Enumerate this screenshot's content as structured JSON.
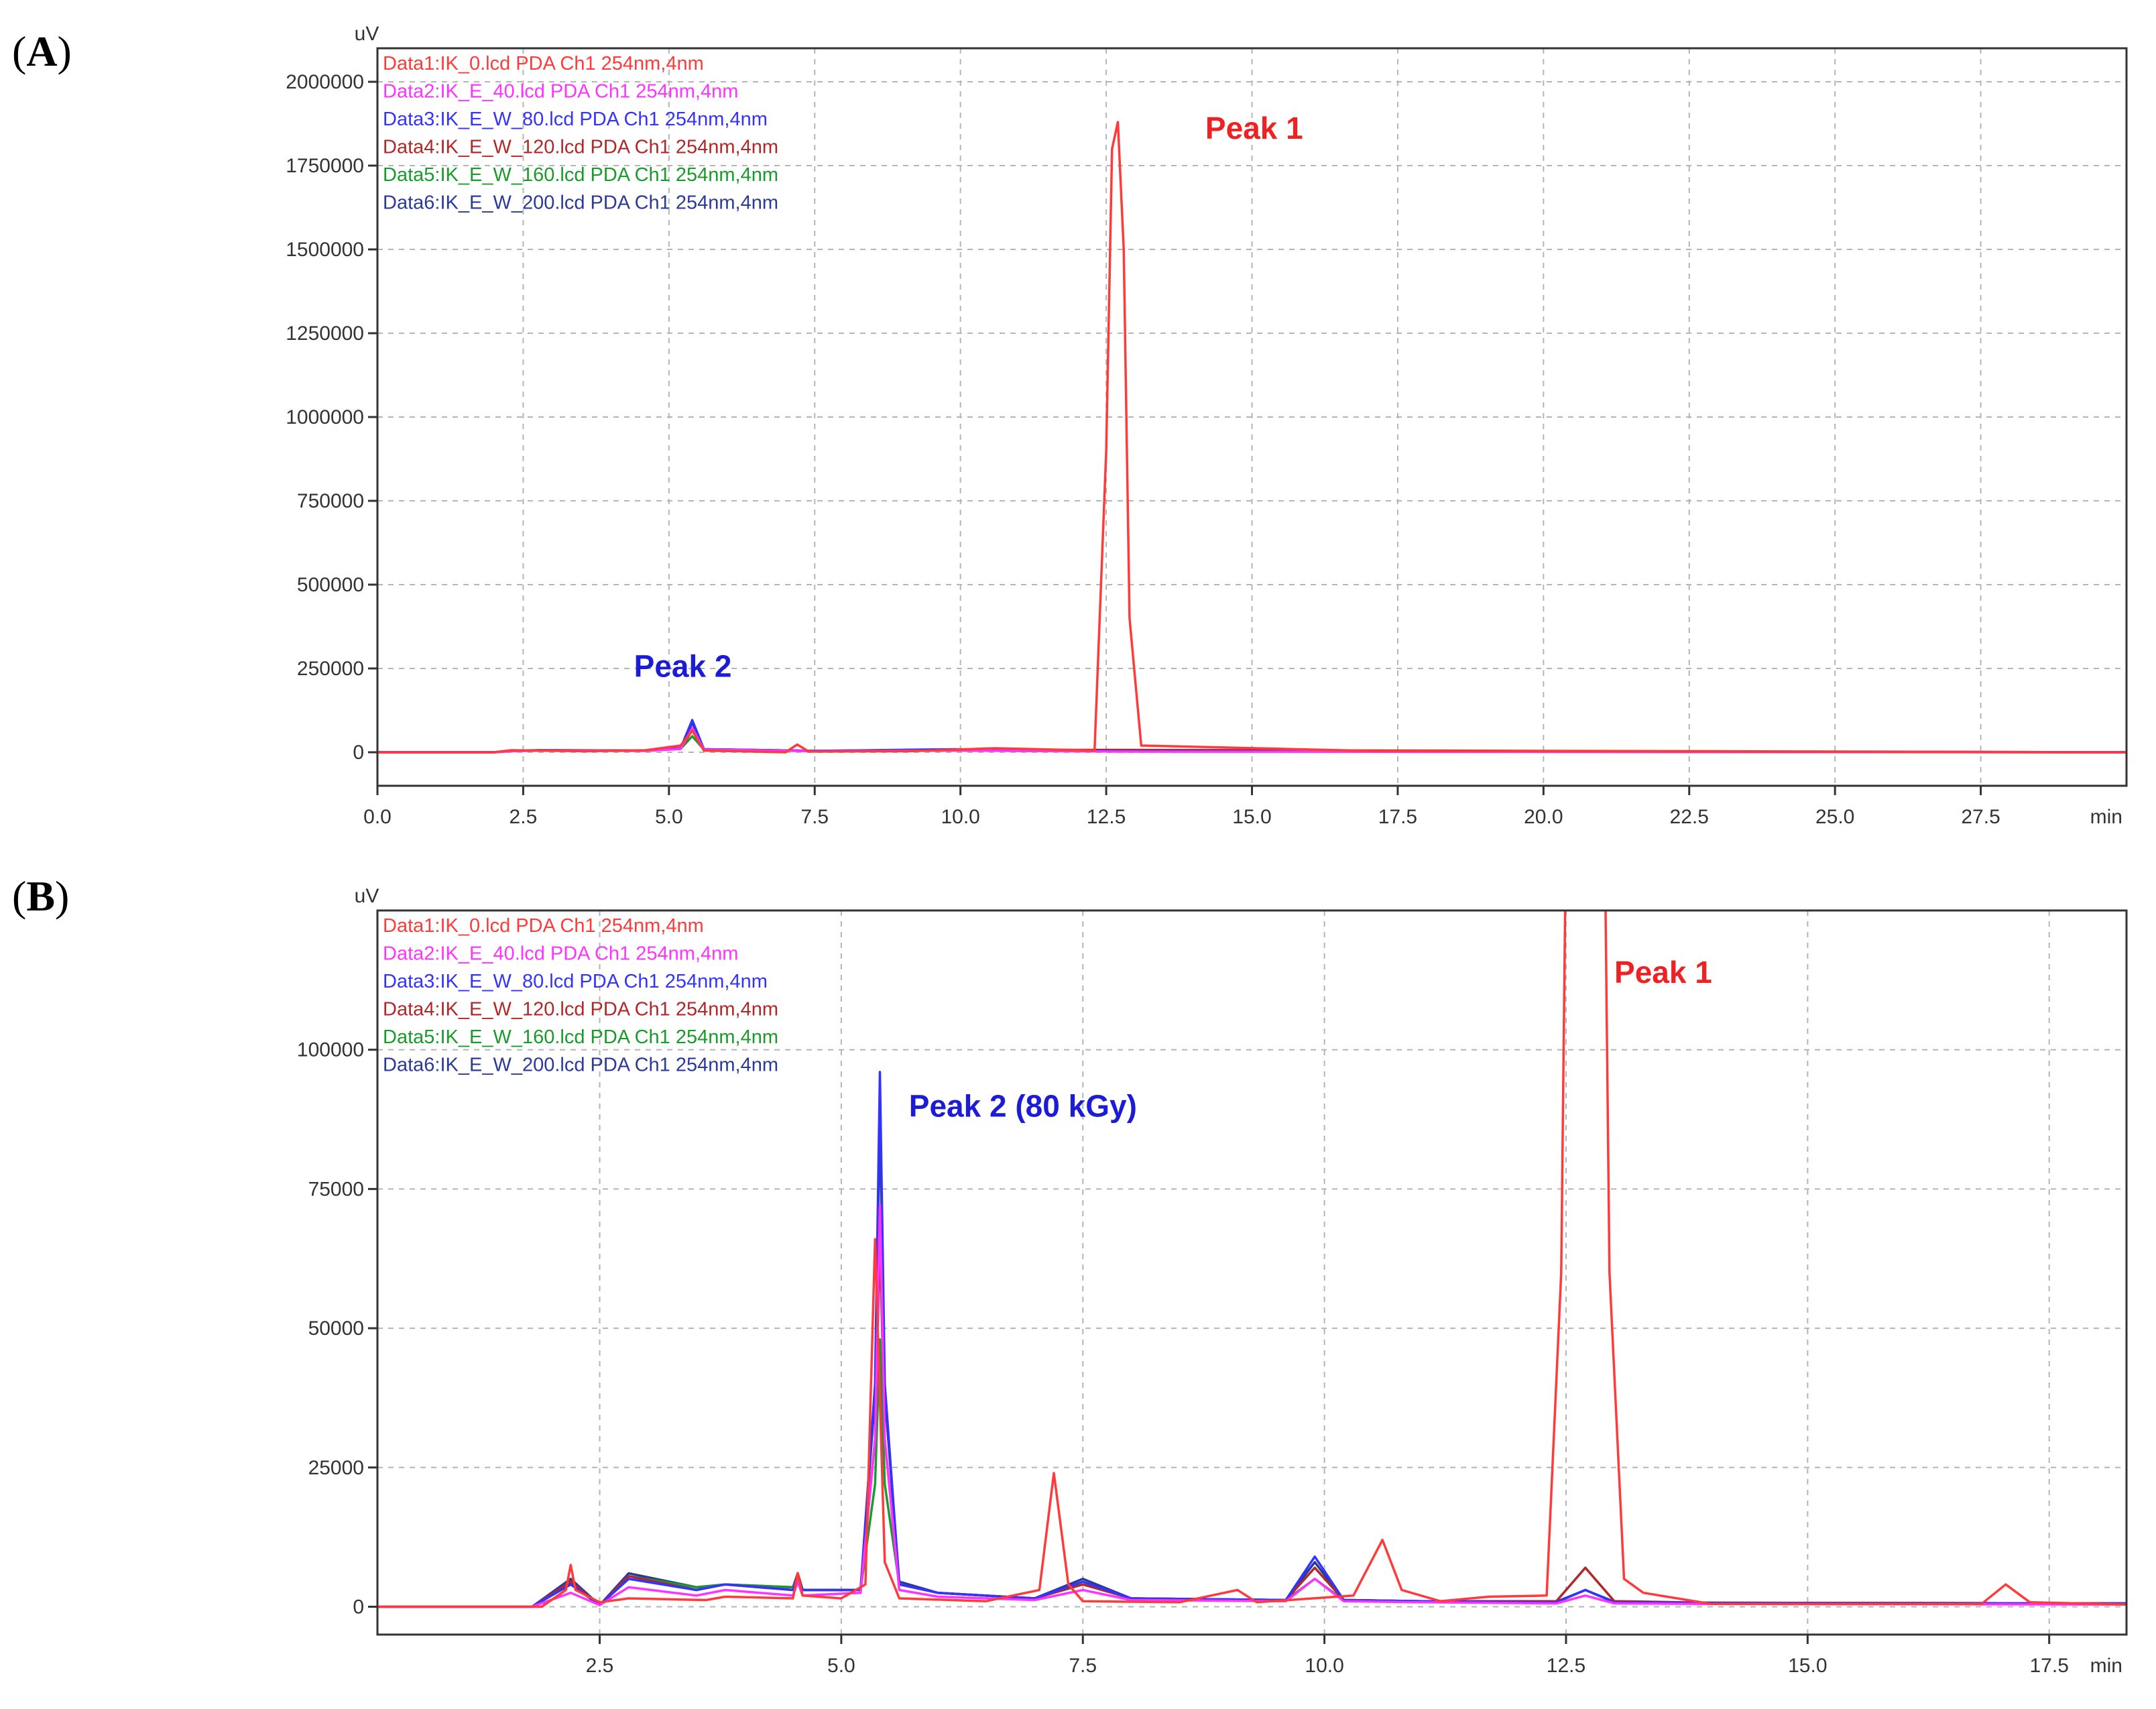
{
  "chart_data": [
    {
      "panel": "(A)",
      "type": "line",
      "y_unit_label": "uV",
      "x_unit_label": "min",
      "xlim": [
        0,
        30
      ],
      "ylim": [
        -100000,
        2100000
      ],
      "x_ticks": [
        0.0,
        2.5,
        5.0,
        7.5,
        10.0,
        12.5,
        15.0,
        17.5,
        20.0,
        22.5,
        25.0,
        27.5
      ],
      "x_tick_labels": [
        "0.0",
        "2.5",
        "5.0",
        "7.5",
        "10.0",
        "12.5",
        "15.0",
        "17.5",
        "20.0",
        "22.5",
        "25.0",
        "27.5"
      ],
      "y_ticks": [
        0,
        250000,
        500000,
        750000,
        1000000,
        1250000,
        1500000,
        1750000,
        2000000
      ],
      "y_tick_labels": [
        "0",
        "250000",
        "500000",
        "750000",
        "1000000",
        "1250000",
        "1500000",
        "1750000",
        "2000000"
      ],
      "grid": true,
      "legend_position": "top-left",
      "annotations": [
        {
          "text": "Peak 1",
          "x": 14.2,
          "y": 1830000,
          "color": "#ee2222"
        },
        {
          "text": "Peak 2",
          "x": 4.4,
          "y": 225000,
          "color": "#1c1cd6"
        }
      ],
      "series": [
        {
          "name": "Data1:IK_0.lcd PDA Ch1 254nm,4nm",
          "color": "#ff3a3a",
          "x": [
            0,
            2,
            2.3,
            3.6,
            4.6,
            5.2,
            5.4,
            5.6,
            7.0,
            7.2,
            7.4,
            9.1,
            10.6,
            12.3,
            12.5,
            12.6,
            12.7,
            12.8,
            12.9,
            13.1,
            17.0,
            30
          ],
          "y": [
            0,
            0,
            6000,
            3000,
            6000,
            20000,
            65000,
            5000,
            0,
            23000,
            2000,
            3000,
            12000,
            5000,
            900000,
            1800000,
            1880000,
            1500000,
            400000,
            20000,
            4000,
            0
          ]
        },
        {
          "name": "Data2:IK_E_40.lcd PDA Ch1 254nm,4nm",
          "color": "#ff33ff",
          "x": [
            0,
            2,
            2.3,
            2.8,
            4.6,
            5.2,
            5.4,
            5.6,
            7.5,
            9.9,
            12.7,
            30
          ],
          "y": [
            0,
            0,
            3000,
            5000,
            4000,
            10000,
            72000,
            8000,
            3000,
            5000,
            2000,
            0
          ]
        },
        {
          "name": "Data3:IK_E_W_80.lcd PDA Ch1 254nm,4nm",
          "color": "#3333ff",
          "x": [
            0,
            2,
            2.3,
            2.8,
            4.6,
            5.2,
            5.4,
            5.6,
            7.5,
            9.9,
            12.7,
            30
          ],
          "y": [
            0,
            0,
            4000,
            5500,
            5000,
            12000,
            96000,
            9000,
            4000,
            9000,
            3000,
            0
          ]
        },
        {
          "name": "Data4:IK_E_W_120.lcd PDA Ch1 254nm,4nm",
          "color": "#b02828",
          "x": [
            0,
            2,
            2.3,
            2.8,
            4.6,
            5.2,
            5.4,
            5.6,
            7.5,
            9.9,
            12.7,
            30
          ],
          "y": [
            0,
            0,
            4000,
            6000,
            5000,
            10000,
            66000,
            9000,
            4000,
            7000,
            7000,
            0
          ]
        },
        {
          "name": "Data5:IK_E_W_160.lcd PDA Ch1 254nm,4nm",
          "color": "#1a9a2a",
          "x": [
            0,
            2,
            2.3,
            2.8,
            4.6,
            5.2,
            5.4,
            5.6,
            7.5,
            9.9,
            12.7,
            30
          ],
          "y": [
            0,
            0,
            4000,
            6000,
            5000,
            10000,
            48000,
            8000,
            4000,
            5000,
            3000,
            0
          ]
        },
        {
          "name": "Data6:IK_E_W_200.lcd PDA Ch1 254nm,4nm",
          "color": "#2a3a9a",
          "x": [
            0,
            2,
            2.3,
            2.8,
            4.6,
            5.2,
            5.4,
            5.6,
            7.5,
            9.9,
            12.7,
            30
          ],
          "y": [
            0,
            0,
            5000,
            6000,
            5000,
            11000,
            88000,
            9000,
            4000,
            8000,
            3000,
            0
          ]
        }
      ]
    },
    {
      "panel": "(B)",
      "type": "line",
      "y_unit_label": "uV",
      "x_unit_label": "min",
      "xlim": [
        0.2,
        18.3
      ],
      "ylim": [
        -5000,
        125000
      ],
      "x_ticks": [
        2.5,
        5.0,
        7.5,
        10.0,
        12.5,
        15.0,
        17.5
      ],
      "x_tick_labels": [
        "2.5",
        "5.0",
        "7.5",
        "10.0",
        "12.5",
        "15.0",
        "17.5"
      ],
      "y_ticks": [
        0,
        25000,
        50000,
        75000,
        100000
      ],
      "y_tick_labels": [
        "0",
        "25000",
        "50000",
        "75000",
        "100000"
      ],
      "grid": true,
      "legend_position": "top-left",
      "annotations": [
        {
          "text": "Peak 1",
          "x": 13.0,
          "y": 112000,
          "color": "#ee2222"
        },
        {
          "text": "Peak 2 (80 kGy)",
          "x": 5.7,
          "y": 88000,
          "color": "#1c1cd6"
        }
      ],
      "series": [
        {
          "name": "Data1:IK_0.lcd PDA Ch1 254nm,4nm",
          "color": "#ff3a3a",
          "x": [
            0.2,
            1.9,
            2.15,
            2.2,
            2.25,
            2.5,
            2.8,
            3.6,
            3.8,
            4.5,
            4.55,
            4.6,
            5.0,
            5.25,
            5.35,
            5.45,
            5.6,
            6.5,
            7.05,
            7.2,
            7.35,
            7.5,
            8.5,
            9.1,
            9.3,
            10.3,
            10.6,
            10.8,
            11.2,
            11.7,
            12.3,
            12.45,
            12.5,
            12.9,
            12.95,
            13.1,
            13.3,
            14.0,
            16.8,
            17.05,
            17.3,
            18.3
          ],
          "y": [
            0,
            0,
            3000,
            7500,
            3000,
            800,
            1500,
            1200,
            1800,
            1500,
            6000,
            2000,
            1500,
            4000,
            66000,
            8000,
            1500,
            1000,
            3000,
            24000,
            4000,
            1000,
            800,
            3000,
            800,
            2000,
            12000,
            3000,
            1000,
            1800,
            2000,
            60000,
            140000,
            140000,
            60000,
            5000,
            2500,
            500,
            500,
            4000,
            800,
            400
          ]
        },
        {
          "name": "Data2:IK_E_40.lcd PDA Ch1 254nm,4nm",
          "color": "#ff33ff",
          "x": [
            0.2,
            1.8,
            2.2,
            2.5,
            2.8,
            3.5,
            3.8,
            4.5,
            4.55,
            4.6,
            5.2,
            5.35,
            5.4,
            5.45,
            5.6,
            6.0,
            7.0,
            7.5,
            8.0,
            9.6,
            9.9,
            10.2,
            11.0,
            12.4,
            12.7,
            13.0,
            14.0,
            18.3
          ],
          "y": [
            0,
            0,
            2500,
            300,
            3500,
            2000,
            3000,
            2000,
            4500,
            2000,
            2500,
            30000,
            72000,
            30000,
            3000,
            1800,
            1200,
            3000,
            1200,
            1000,
            5000,
            1000,
            800,
            600,
            2000,
            600,
            500,
            400
          ]
        },
        {
          "name": "Data3:IK_E_W_80.lcd PDA Ch1 254nm,4nm",
          "color": "#3333ff",
          "x": [
            0.2,
            1.8,
            2.2,
            2.5,
            2.8,
            3.5,
            3.8,
            4.5,
            4.55,
            4.6,
            5.2,
            5.35,
            5.4,
            5.45,
            5.6,
            6.0,
            7.0,
            7.5,
            8.0,
            9.6,
            9.9,
            10.2,
            11.0,
            12.4,
            12.7,
            13.0,
            14.0,
            18.3
          ],
          "y": [
            0,
            0,
            4000,
            300,
            5000,
            3000,
            4000,
            3000,
            5500,
            3000,
            3000,
            40000,
            96000,
            40000,
            4000,
            2500,
            1500,
            4500,
            1500,
            1200,
            9000,
            1200,
            1000,
            800,
            3000,
            800,
            700,
            600
          ]
        },
        {
          "name": "Data4:IK_E_W_120.lcd PDA Ch1 254nm,4nm",
          "color": "#b02828",
          "x": [
            0.2,
            1.8,
            2.2,
            2.5,
            2.8,
            3.5,
            3.8,
            4.5,
            4.55,
            4.6,
            5.2,
            5.35,
            5.4,
            5.45,
            5.6,
            6.0,
            7.0,
            7.5,
            8.0,
            9.6,
            9.9,
            10.2,
            11.0,
            12.4,
            12.7,
            13.0,
            14.0,
            18.3
          ],
          "y": [
            0,
            0,
            4500,
            300,
            5500,
            3000,
            4000,
            3000,
            6000,
            3000,
            3000,
            30000,
            66000,
            30000,
            4000,
            2500,
            1500,
            4000,
            1500,
            1200,
            7000,
            1200,
            1000,
            1000,
            7000,
            1000,
            700,
            600
          ]
        },
        {
          "name": "Data5:IK_E_W_160.lcd PDA Ch1 254nm,4nm",
          "color": "#1a9a2a",
          "x": [
            0.2,
            1.8,
            2.2,
            2.5,
            2.8,
            3.5,
            3.8,
            4.5,
            4.55,
            4.6,
            5.2,
            5.35,
            5.4,
            5.45,
            5.6,
            6.0,
            7.0,
            7.5,
            8.0,
            9.6,
            9.9,
            10.2,
            11.0,
            12.4,
            12.7,
            13.0,
            14.0,
            18.3
          ],
          "y": [
            0,
            0,
            4000,
            300,
            5500,
            3500,
            4000,
            3500,
            5500,
            3000,
            3000,
            22000,
            48000,
            22000,
            4000,
            2500,
            1500,
            4000,
            1500,
            1200,
            5000,
            1200,
            1000,
            800,
            3000,
            800,
            700,
            600
          ]
        },
        {
          "name": "Data6:IK_E_W_200.lcd PDA Ch1 254nm,4nm",
          "color": "#2a3a9a",
          "x": [
            0.2,
            1.8,
            2.2,
            2.5,
            2.8,
            3.5,
            3.8,
            4.5,
            4.55,
            4.6,
            5.2,
            5.35,
            5.4,
            5.45,
            5.6,
            6.0,
            7.0,
            7.5,
            8.0,
            9.6,
            9.9,
            10.2,
            11.0,
            12.4,
            12.7,
            13.0,
            14.0,
            18.3
          ],
          "y": [
            0,
            0,
            5000,
            300,
            6000,
            3500,
            4000,
            3500,
            6000,
            3000,
            3000,
            38000,
            88000,
            38000,
            4500,
            2500,
            1500,
            5000,
            1500,
            1200,
            8000,
            1200,
            1000,
            900,
            3000,
            900,
            700,
            600
          ]
        }
      ]
    }
  ]
}
